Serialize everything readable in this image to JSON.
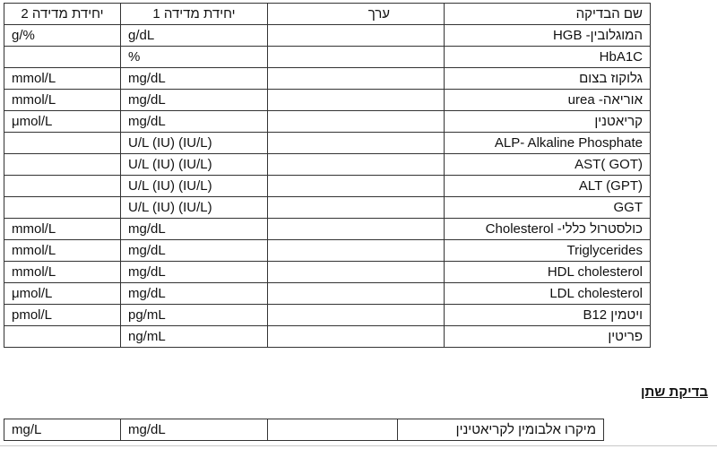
{
  "main_table": {
    "headers": {
      "name": "שם הבדיקה",
      "value": "ערך",
      "unit1": "יחידת מדידה 1",
      "unit2": "יחידת מדידה 2"
    },
    "rows": [
      {
        "name": "המוגלובין- HGB",
        "value": "",
        "unit1": "g/dL",
        "unit2": "g/%"
      },
      {
        "name": "HbA1C",
        "value": "",
        "unit1": "%",
        "unit2": ""
      },
      {
        "name": "גלוקוז בצום",
        "value": "",
        "unit1": "mg/dL",
        "unit2": "mmol/L"
      },
      {
        "name": "אוריאה- urea",
        "value": "",
        "unit1": "mg/dL",
        "unit2": "mmol/L"
      },
      {
        "name": "קריאטנין",
        "value": "",
        "unit1": "mg/dL",
        "unit2": "μmol/L"
      },
      {
        "name": "ALP- Alkaline Phosphate",
        "value": "",
        "unit1": "U/L (IU) (IU/L)",
        "unit2": ""
      },
      {
        "name": "AST( GOT)",
        "value": "",
        "unit1": "U/L (IU) (IU/L)",
        "unit2": ""
      },
      {
        "name": "ALT (GPT)",
        "value": "",
        "unit1": "U/L (IU) (IU/L)",
        "unit2": ""
      },
      {
        "name": "GGT",
        "value": "",
        "unit1": "U/L (IU) (IU/L)",
        "unit2": ""
      },
      {
        "name": "כולסטרול כללי- Cholesterol",
        "value": "",
        "unit1": "mg/dL",
        "unit2": "mmol/L"
      },
      {
        "name": "Triglycerides",
        "value": "",
        "unit1": "mg/dL",
        "unit2": "mmol/L"
      },
      {
        "name": "HDL cholesterol",
        "value": "",
        "unit1": "mg/dL",
        "unit2": "mmol/L"
      },
      {
        "name": "LDL cholesterol",
        "value": "",
        "unit1": "mg/dL",
        "unit2": "μmol/L"
      },
      {
        "name": "ויטמין B12",
        "value": "",
        "unit1": "pg/mL",
        "unit2": "pmol/L"
      },
      {
        "name": "פריטין",
        "value": "",
        "unit1": "ng/mL",
        "unit2": ""
      }
    ]
  },
  "urine_section": {
    "heading": "בדיקת שתן",
    "rows": [
      {
        "name": "מיקרו אלבומין לקריאטינין",
        "value": "",
        "unit1": "mg/dL",
        "unit2": "mg/L"
      }
    ]
  }
}
